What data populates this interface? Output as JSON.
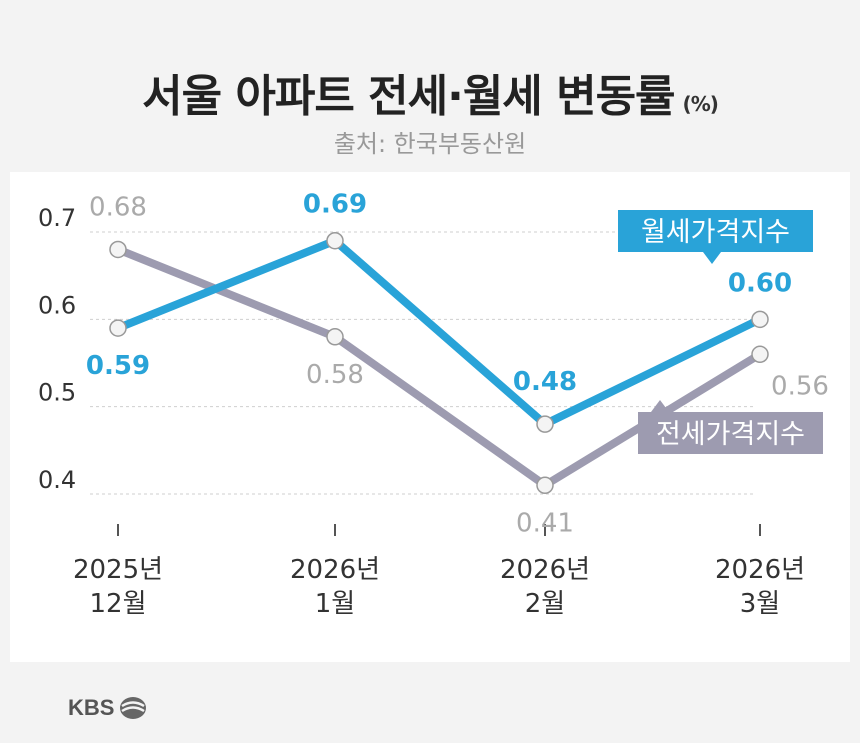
{
  "title": "서울 아파트 전세·월세 변동률",
  "title_unit": "(%)",
  "source": "출처: 한국부동산원",
  "brand": "KBS",
  "colors": {
    "monthly": "#29a3d8",
    "jeonse": "#9d9bb0",
    "monthly_label": "#29a3d8",
    "jeonse_label": "#aaaaaa",
    "grid": "#cfcfcf",
    "axis_text": "#333333"
  },
  "chart_data": {
    "type": "line",
    "title": "서울 아파트 전세·월세 변동률",
    "ylabel": "%",
    "ylim": [
      0.4,
      0.7
    ],
    "yticks": [
      "0.7",
      "0.6",
      "0.5",
      "0.4"
    ],
    "ytick_values": [
      0.7,
      0.6,
      0.5,
      0.4
    ],
    "categories": [
      {
        "line1": "2025년",
        "line2": "12월"
      },
      {
        "line1": "2026년",
        "line2": "1월"
      },
      {
        "line1": "2026년",
        "line2": "2월"
      },
      {
        "line1": "2026년",
        "line2": "3월"
      }
    ],
    "series": [
      {
        "key": "monthly",
        "name": "월세가격지수",
        "values": [
          0.59,
          0.69,
          0.48,
          0.6
        ],
        "labels": [
          "0.59",
          "0.69",
          "0.48",
          "0.60"
        ]
      },
      {
        "key": "jeonse",
        "name": "전세가격지수",
        "values": [
          0.68,
          0.58,
          0.41,
          0.56
        ],
        "labels": [
          "0.68",
          "0.58",
          "0.41",
          "0.56"
        ]
      }
    ],
    "grid": true,
    "legend": "callout labels on lines"
  }
}
